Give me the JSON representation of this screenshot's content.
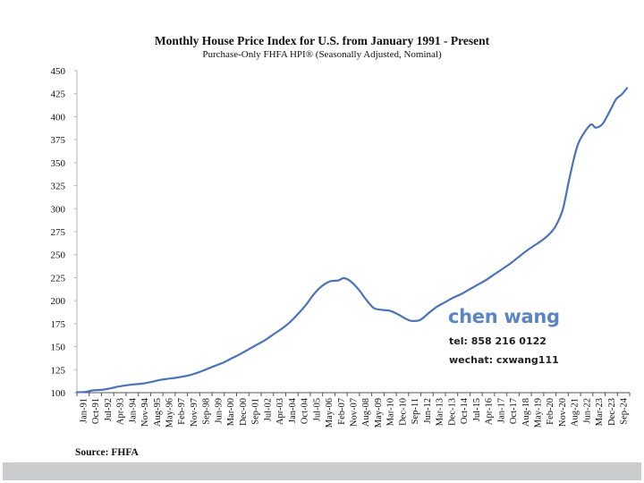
{
  "chart_data": {
    "type": "line",
    "title": "Monthly House Price Index for U.S. from January 1991 - Present",
    "subtitle": "Purchase-Only FHFA HPI® (Seasonally Adjusted, Nominal)",
    "xlabel": "",
    "ylabel": "",
    "ylim": [
      100,
      450
    ],
    "yticks": [
      100,
      125,
      150,
      175,
      200,
      225,
      250,
      275,
      300,
      325,
      350,
      375,
      400,
      425,
      450
    ],
    "grid": false,
    "legend": "none",
    "line_color": "#4a73b8",
    "xtick_labels": [
      "Jan-91",
      "Oct-91",
      "Jul-92",
      "Apr-93",
      "Jan-94",
      "Nov-94",
      "Aug-95",
      "May-96",
      "Feb-97",
      "Nov-97",
      "Sep-98",
      "Jun-99",
      "Mar-00",
      "Dec-00",
      "Sep-01",
      "Jul-02",
      "Apr-03",
      "Jan-04",
      "Oct-04",
      "Jul-05",
      "May-06",
      "Feb-07",
      "Nov-07",
      "Aug-08",
      "May-09",
      "Mar-10",
      "Dec-10",
      "Sep-11",
      "Jun-12",
      "Mar-13",
      "Dec-13",
      "Oct-14",
      "Jul-15",
      "Apr-16",
      "Jan-17",
      "Oct-17",
      "Aug-18",
      "May-19",
      "Feb-20",
      "Nov-20",
      "Aug-21",
      "Jun-22",
      "Mar-23",
      "Dec-23",
      "Sep-24"
    ],
    "series": [
      {
        "name": "FHFA HPI",
        "x": [
          "1991-01",
          "1991-07",
          "1992-01",
          "1992-07",
          "1993-01",
          "1993-07",
          "1994-01",
          "1994-07",
          "1995-01",
          "1995-07",
          "1996-01",
          "1996-07",
          "1997-01",
          "1997-07",
          "1998-01",
          "1998-07",
          "1999-01",
          "1999-07",
          "2000-01",
          "2000-07",
          "2001-01",
          "2001-07",
          "2002-01",
          "2002-07",
          "2003-01",
          "2003-07",
          "2004-01",
          "2004-07",
          "2005-01",
          "2005-07",
          "2006-01",
          "2006-07",
          "2007-01",
          "2007-05",
          "2007-10",
          "2008-04",
          "2008-09",
          "2009-03",
          "2009-09",
          "2010-03",
          "2010-09",
          "2011-03",
          "2011-07",
          "2012-01",
          "2012-07",
          "2013-01",
          "2013-07",
          "2014-01",
          "2014-07",
          "2015-01",
          "2015-07",
          "2016-01",
          "2016-07",
          "2017-01",
          "2017-07",
          "2018-01",
          "2018-07",
          "2019-01",
          "2019-07",
          "2020-01",
          "2020-05",
          "2020-10",
          "2021-03",
          "2021-09",
          "2022-06",
          "2022-10",
          "2023-03",
          "2023-08",
          "2024-01",
          "2024-05",
          "2024-09"
        ],
        "values": [
          100.5,
          100.8,
          102.5,
          103,
          104.5,
          106.5,
          108,
          109,
          109.8,
          111.5,
          113.5,
          115,
          116,
          117.5,
          119.5,
          122.5,
          126,
          129.5,
          133,
          137.5,
          142,
          147,
          152,
          157,
          163,
          169,
          176,
          185,
          195,
          207,
          216,
          221,
          222,
          224.5,
          221,
          212,
          202,
          192,
          190,
          189,
          185,
          180,
          178,
          179,
          186,
          193,
          198,
          203,
          207,
          212,
          217,
          222,
          228,
          234,
          240,
          247,
          254,
          260,
          266,
          274,
          282,
          300,
          335,
          370,
          391,
          388,
          392,
          405,
          419,
          424,
          431
        ]
      }
    ]
  },
  "watermark": {
    "name": "chen wang",
    "tel": "tel: 858 216 0122",
    "wechat": "wechat: cxwang111"
  },
  "source": "Source: FHFA"
}
